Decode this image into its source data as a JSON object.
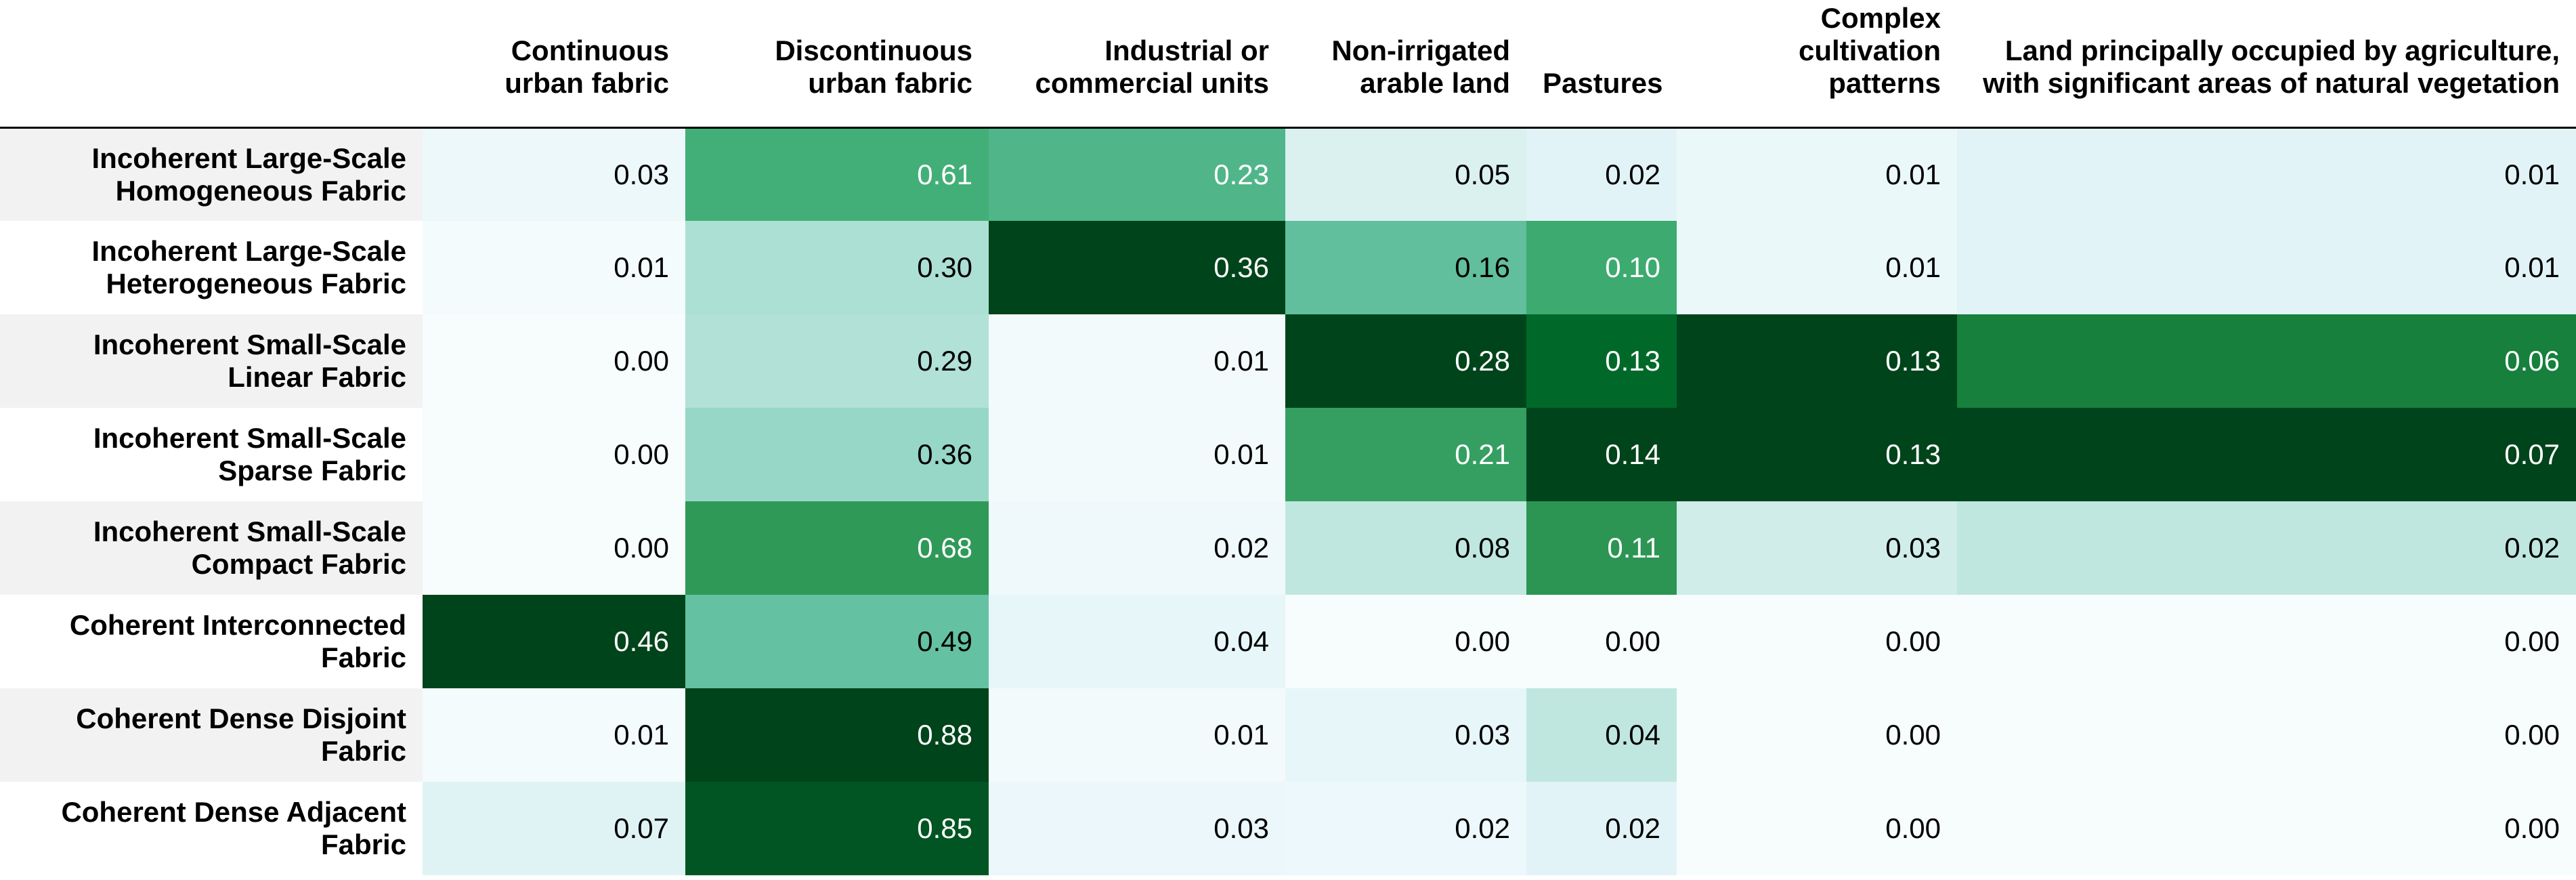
{
  "chart_data": {
    "type": "heatmap",
    "columns": [
      [
        "Continuous",
        "urban fabric"
      ],
      [
        "Discontinuous",
        "urban fabric"
      ],
      [
        "Industrial or",
        "commercial units"
      ],
      [
        "Non-irrigated",
        "arable land"
      ],
      [
        "Pastures"
      ],
      [
        "Complex",
        "cultivation",
        "patterns"
      ],
      [
        "Land principally occupied by agriculture,",
        "with significant areas of natural vegetation"
      ]
    ],
    "rows": [
      [
        "Incoherent Large-Scale",
        "Homogeneous Fabric"
      ],
      [
        "Incoherent Large-Scale",
        "Heterogeneous Fabric"
      ],
      [
        "Incoherent Small-Scale",
        "Linear Fabric"
      ],
      [
        "Incoherent Small-Scale",
        "Sparse Fabric"
      ],
      [
        "Incoherent Small-Scale",
        "Compact Fabric"
      ],
      [
        "Coherent Interconnected",
        "Fabric"
      ],
      [
        "Coherent Dense Disjoint",
        "Fabric"
      ],
      [
        "Coherent Dense Adjacent",
        "Fabric"
      ]
    ],
    "values": [
      [
        "0.03",
        "0.61",
        "0.23",
        "0.05",
        "0.02",
        "0.01",
        "0.01"
      ],
      [
        "0.01",
        "0.30",
        "0.36",
        "0.16",
        "0.10",
        "0.01",
        "0.01"
      ],
      [
        "0.00",
        "0.29",
        "0.01",
        "0.28",
        "0.13",
        "0.13",
        "0.06"
      ],
      [
        "0.00",
        "0.36",
        "0.01",
        "0.21",
        "0.14",
        "0.13",
        "0.07"
      ],
      [
        "0.00",
        "0.68",
        "0.02",
        "0.08",
        "0.11",
        "0.03",
        "0.02"
      ],
      [
        "0.46",
        "0.49",
        "0.04",
        "0.00",
        "0.00",
        "0.00",
        "0.00"
      ],
      [
        "0.01",
        "0.88",
        "0.01",
        "0.03",
        "0.04",
        "0.00",
        "0.00"
      ],
      [
        "0.07",
        "0.85",
        "0.03",
        "0.02",
        "0.02",
        "0.00",
        "0.00"
      ]
    ],
    "colorscale": "Greens (shaded per column)",
    "colors": {
      "low": "#f7fcfd",
      "mid_low": "#ccece6",
      "mid": "#66c2a4",
      "mid_high": "#238b45",
      "high": "#00441b",
      "text_dark": "#000000",
      "text_light": "#ffffff",
      "row_band": "#f2f2f2"
    },
    "grid": false
  }
}
